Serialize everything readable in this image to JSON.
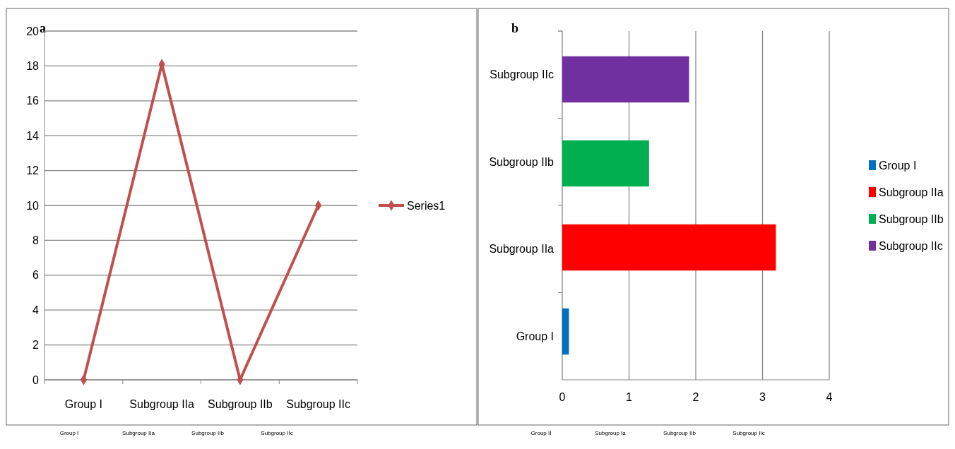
{
  "chart_data": [
    {
      "type": "line",
      "title": "a",
      "categories": [
        "Group I",
        "Subgroup IIa",
        "Subgroup IIb",
        "Subgroup IIc"
      ],
      "series": [
        {
          "name": "Series1",
          "color": "#c0504d",
          "values": [
            0,
            18.1,
            0,
            10
          ]
        }
      ],
      "ylim": [
        0,
        20
      ],
      "yticks": [
        0,
        2,
        4,
        6,
        8,
        10,
        12,
        14,
        16,
        18,
        20
      ],
      "grid": "y",
      "legend": "right",
      "marker": "diamond",
      "line_style": "solid",
      "annotations": [
        "Group I",
        "Subgroup IIa",
        "Subgroup IIb",
        "Subgroup IIc"
      ]
    },
    {
      "type": "bar",
      "orientation": "horizontal",
      "title": "b",
      "categories": [
        "Subgroup IIc",
        "Subgroup IIb",
        "Subgroup IIa",
        "Group I"
      ],
      "stacked": true,
      "series": [
        {
          "name": "Group I",
          "color": "#0070c0",
          "values": [
            null,
            null,
            null,
            0.1
          ]
        },
        {
          "name": "Subgroup IIa",
          "color": "#ff0000",
          "values": [
            null,
            null,
            3.2,
            null
          ]
        },
        {
          "name": "Subgroup IIb",
          "color": "#00b050",
          "values": [
            null,
            1.3,
            null,
            null
          ]
        },
        {
          "name": "Subgroup IIc",
          "color": "#7030a0",
          "values": [
            1.9,
            null,
            null,
            null
          ]
        }
      ],
      "xlim": [
        0,
        4
      ],
      "xticks": [
        0,
        1,
        2,
        3,
        4
      ],
      "grid": "x",
      "legend": "right",
      "annotations": [
        "Group II",
        "Subgroup Ia",
        "Subgroup IIb",
        "Subgroup IIc"
      ]
    }
  ]
}
